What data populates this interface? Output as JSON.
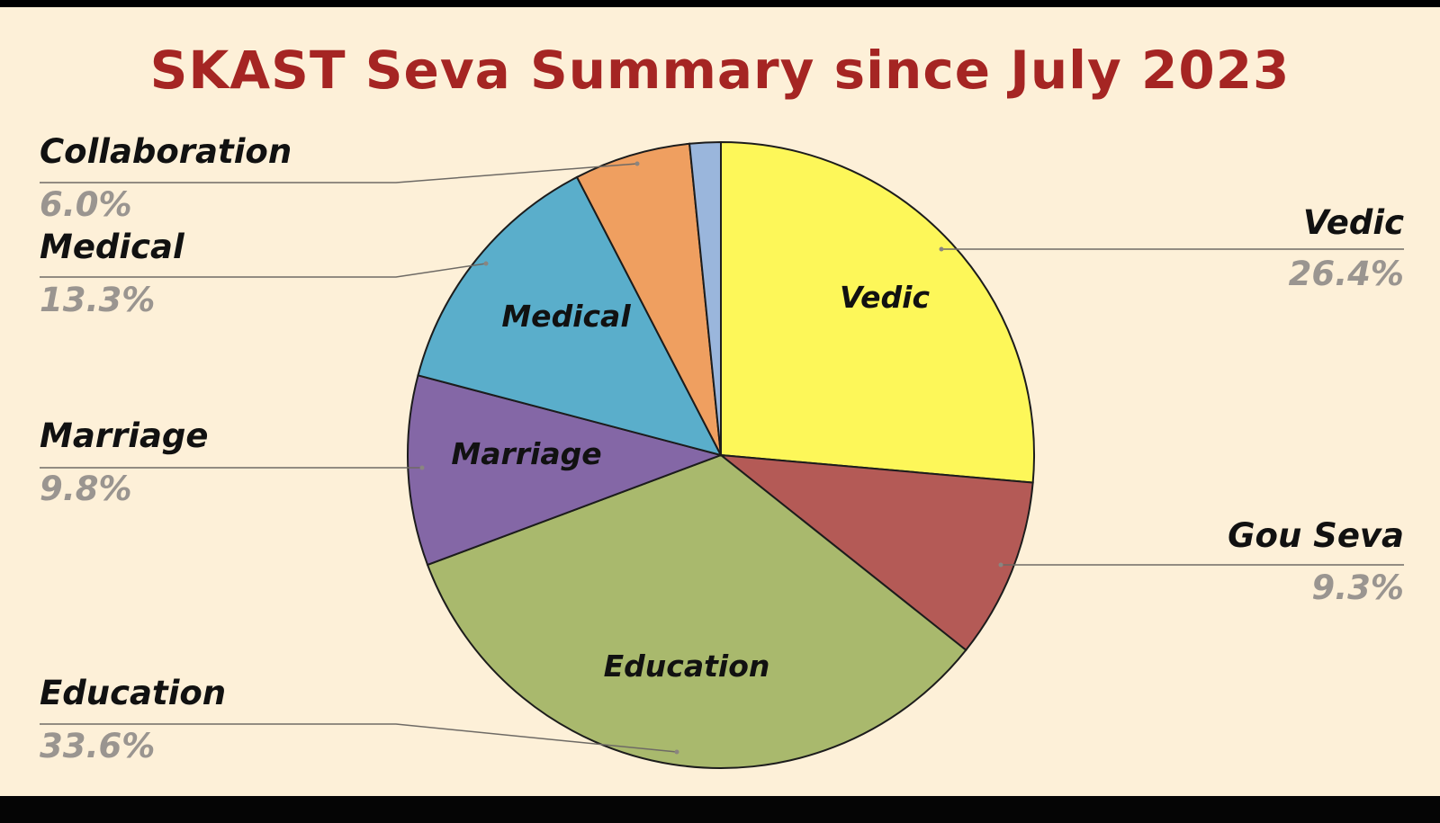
{
  "title": "SKAST Seva Summary since July 2023",
  "chart_data": {
    "type": "pie",
    "title": "SKAST Seva Summary since July 2023",
    "start_angle_deg": 0,
    "direction": "clockwise",
    "slices": [
      {
        "name": "Vedic",
        "value": 26.4,
        "label": "26.4%",
        "color": "#fdf759",
        "inner_label": "Vedic"
      },
      {
        "name": "Gou Seva",
        "value": 9.3,
        "label": "9.3%",
        "color": "#b45a56",
        "inner_label": ""
      },
      {
        "name": "Education",
        "value": 33.6,
        "label": "33.6%",
        "color": "#a9b96d",
        "inner_label": "Education"
      },
      {
        "name": "Marriage",
        "value": 9.8,
        "label": "9.8%",
        "color": "#8467a6",
        "inner_label": "Marriage"
      },
      {
        "name": "Medical",
        "value": 13.3,
        "label": "13.3%",
        "color": "#5aaecb",
        "inner_label": "Medical"
      },
      {
        "name": "Collaboration",
        "value": 6.0,
        "label": "6.0%",
        "color": "#ef9f60",
        "inner_label": ""
      },
      {
        "name": "",
        "value": 1.6,
        "label": "",
        "color": "#9ab6dc",
        "inner_label": ""
      }
    ]
  }
}
